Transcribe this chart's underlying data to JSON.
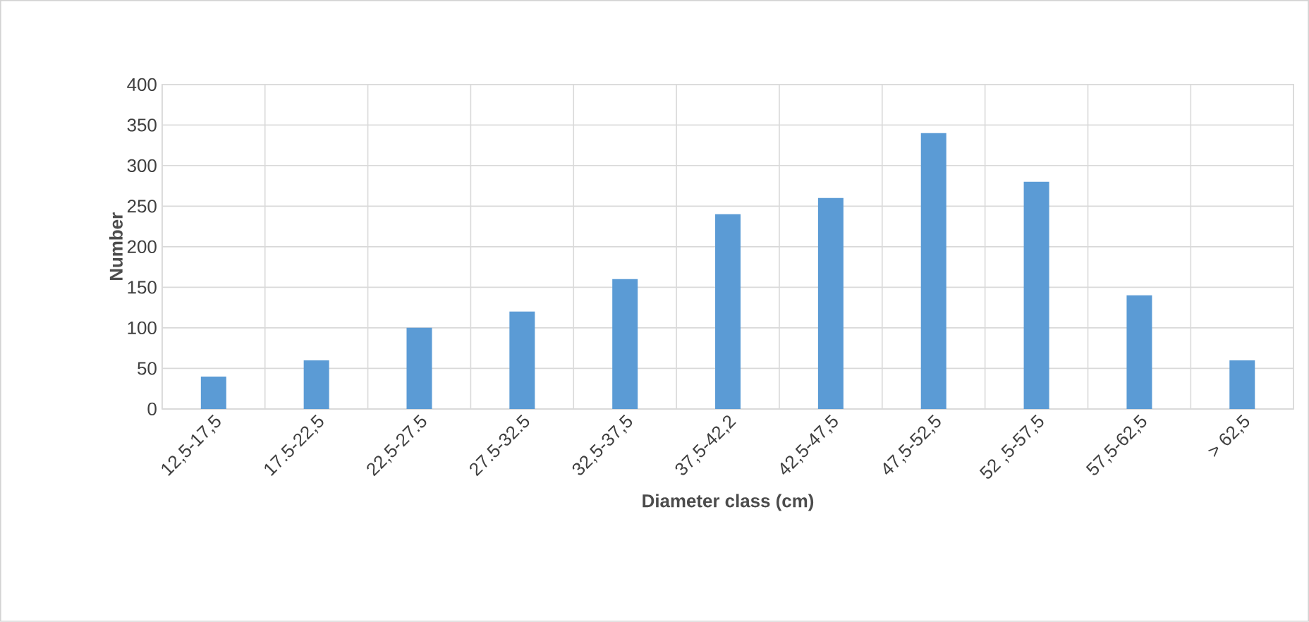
{
  "chart_data": {
    "type": "bar",
    "xlabel": "Diameter class (cm)",
    "ylabel": "Number",
    "categories": [
      "12,5-17,5",
      "17.5-22,5",
      "22,5-27.5",
      "27.5-32.5",
      "32,5-37,5",
      "37,5-42,2",
      "42,5-47,5",
      "47,5-52,5",
      "52 ,5-57,5",
      "57,5-62,5",
      "> 62,5"
    ],
    "values": [
      40,
      60,
      100,
      120,
      160,
      240,
      260,
      340,
      280,
      140,
      60
    ],
    "color": "#5b9bd5",
    "ylim": [
      0,
      400
    ],
    "yticks": [
      0,
      50,
      100,
      150,
      200,
      250,
      300,
      350,
      400
    ],
    "grid": true
  }
}
